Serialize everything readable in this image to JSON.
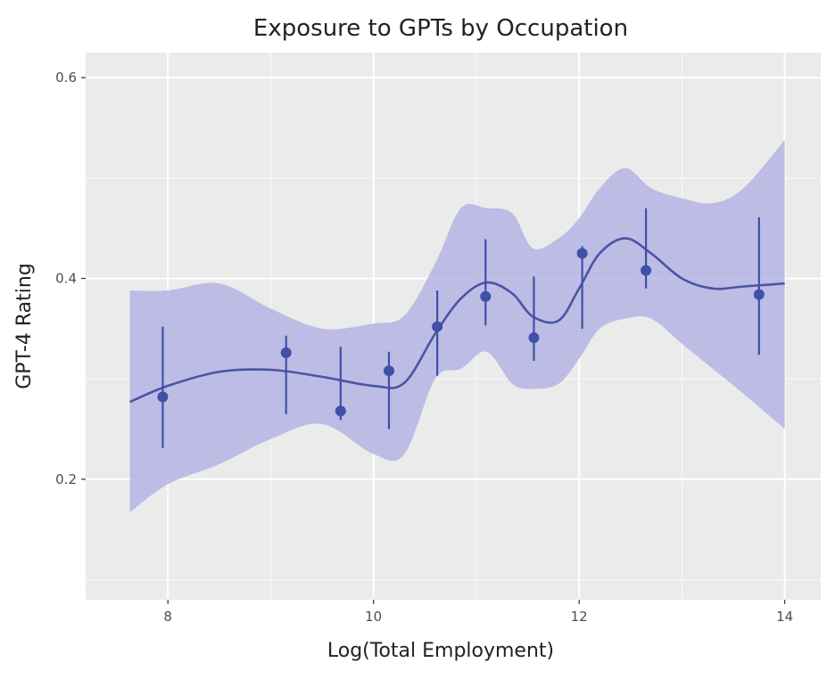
{
  "chart_data": {
    "type": "scatter",
    "title": "Exposure to GPTs by Occupation",
    "xlabel": "Log(Total Employment)",
    "ylabel": "GPT-4 Rating",
    "xlim": [
      7.2,
      14.35
    ],
    "ylim": [
      0.08,
      0.625
    ],
    "x_ticks": [
      8,
      10,
      12,
      14
    ],
    "x_tick_labels": [
      "8",
      "10",
      "12",
      "14"
    ],
    "y_ticks": [
      0.2,
      0.4,
      0.6
    ],
    "y_tick_labels": [
      "0.2",
      "0.4",
      "0.6"
    ],
    "grid": true,
    "colors": {
      "points": "#3f51a6",
      "smooth_line": "#4a55a2",
      "ribbon": "#b4b4e4",
      "panel": "#ebebeb"
    },
    "points": [
      {
        "x": 7.95,
        "y": 0.282,
        "ymin": 0.231,
        "ymax": 0.352
      },
      {
        "x": 9.15,
        "y": 0.326,
        "ymin": 0.265,
        "ymax": 0.343
      },
      {
        "x": 9.68,
        "y": 0.268,
        "ymin": 0.259,
        "ymax": 0.332
      },
      {
        "x": 10.15,
        "y": 0.308,
        "ymin": 0.25,
        "ymax": 0.327
      },
      {
        "x": 10.62,
        "y": 0.352,
        "ymin": 0.303,
        "ymax": 0.388
      },
      {
        "x": 11.09,
        "y": 0.382,
        "ymin": 0.353,
        "ymax": 0.439
      },
      {
        "x": 11.56,
        "y": 0.341,
        "ymin": 0.318,
        "ymax": 0.402
      },
      {
        "x": 12.03,
        "y": 0.425,
        "ymin": 0.35,
        "ymax": 0.432
      },
      {
        "x": 12.65,
        "y": 0.408,
        "ymin": 0.39,
        "ymax": 0.47
      },
      {
        "x": 13.75,
        "y": 0.384,
        "ymin": 0.324,
        "ymax": 0.461
      }
    ],
    "smooth": {
      "x": [
        7.63,
        8.0,
        8.5,
        9.0,
        9.5,
        10.0,
        10.3,
        10.6,
        10.85,
        11.1,
        11.35,
        11.55,
        11.8,
        12.0,
        12.2,
        12.45,
        12.7,
        13.0,
        13.3,
        13.6,
        14.0
      ],
      "y": [
        0.277,
        0.293,
        0.307,
        0.309,
        0.302,
        0.293,
        0.296,
        0.345,
        0.38,
        0.396,
        0.385,
        0.362,
        0.358,
        0.39,
        0.425,
        0.44,
        0.425,
        0.4,
        0.39,
        0.392,
        0.395
      ],
      "lower": [
        0.167,
        0.195,
        0.215,
        0.24,
        0.255,
        0.225,
        0.225,
        0.3,
        0.31,
        0.327,
        0.295,
        0.29,
        0.295,
        0.32,
        0.35,
        0.36,
        0.36,
        0.335,
        0.31,
        0.285,
        0.25
      ],
      "upper": [
        0.388,
        0.388,
        0.395,
        0.37,
        0.35,
        0.355,
        0.363,
        0.415,
        0.47,
        0.47,
        0.465,
        0.43,
        0.44,
        0.46,
        0.49,
        0.51,
        0.49,
        0.48,
        0.475,
        0.49,
        0.538
      ]
    }
  }
}
